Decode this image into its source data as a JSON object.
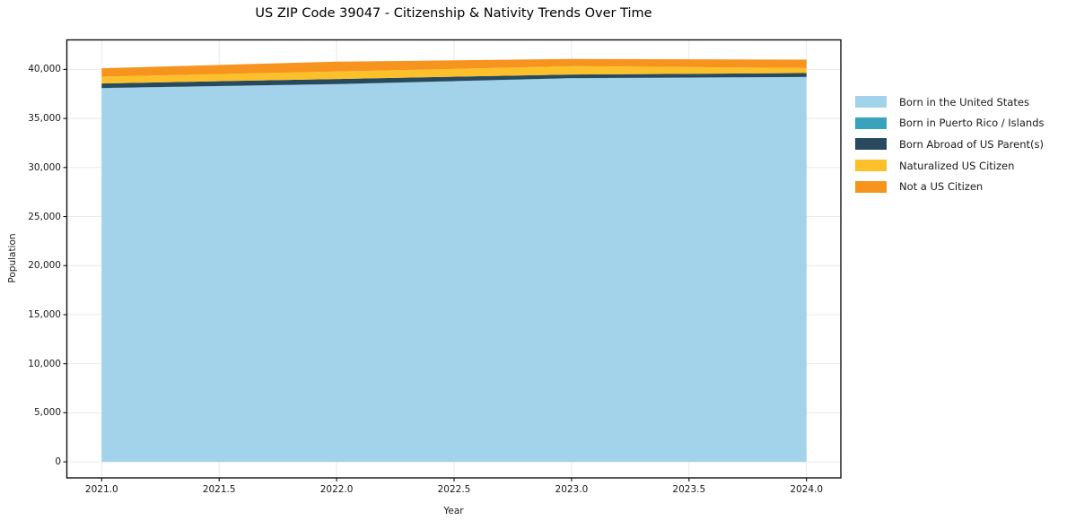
{
  "title": "US ZIP Code 39047 - Citizenship & Nativity Trends Over Time",
  "chart_data": {
    "type": "area",
    "stacked": true,
    "title": "US ZIP Code 39047 - Citizenship & Nativity Trends Over Time",
    "xlabel": "Year",
    "ylabel": "Population",
    "grid": true,
    "legend_position": "right-outside",
    "x": [
      2021,
      2022,
      2023,
      2024
    ],
    "xlim": [
      2020.85,
      2024.15
    ],
    "ylim": [
      0,
      41100
    ],
    "series": [
      {
        "name": "Born in the United States",
        "color": "#a2d3ea",
        "values": [
          38085,
          38480,
          39090,
          39210
        ]
      },
      {
        "name": "Born in Puerto Rico / Islands",
        "color": "#3aa3bc",
        "values": [
          25,
          25,
          25,
          25
        ]
      },
      {
        "name": "Born Abroad of US Parent(s)",
        "color": "#28495e",
        "values": [
          455,
          520,
          365,
          390
        ]
      },
      {
        "name": "Naturalized US Citizen",
        "color": "#fbc02a",
        "values": [
          695,
          760,
          850,
          520
        ]
      },
      {
        "name": "Not a US Citizen",
        "color": "#f6941e",
        "values": [
          860,
          1005,
          730,
          855
        ]
      }
    ],
    "totals": [
      40120,
      40790,
      41060,
      41000
    ],
    "x_ticks": [
      {
        "v": 2021.0,
        "label": "2021.0"
      },
      {
        "v": 2021.5,
        "label": "2021.5"
      },
      {
        "v": 2022.0,
        "label": "2022.0"
      },
      {
        "v": 2022.5,
        "label": "2022.5"
      },
      {
        "v": 2023.0,
        "label": "2023.0"
      },
      {
        "v": 2023.5,
        "label": "2023.5"
      },
      {
        "v": 2024.0,
        "label": "2024.0"
      }
    ],
    "y_ticks": [
      {
        "v": 0,
        "label": "0"
      },
      {
        "v": 5000,
        "label": "5,000"
      },
      {
        "v": 10000,
        "label": "10,000"
      },
      {
        "v": 15000,
        "label": "15,000"
      },
      {
        "v": 20000,
        "label": "20,000"
      },
      {
        "v": 25000,
        "label": "25,000"
      },
      {
        "v": 30000,
        "label": "30,000"
      },
      {
        "v": 35000,
        "label": "35,000"
      },
      {
        "v": 40000,
        "label": "40,000"
      }
    ],
    "colors": {
      "grid": "#e7e7ea",
      "spine": "#111111",
      "text": "#1a1a1a"
    }
  }
}
